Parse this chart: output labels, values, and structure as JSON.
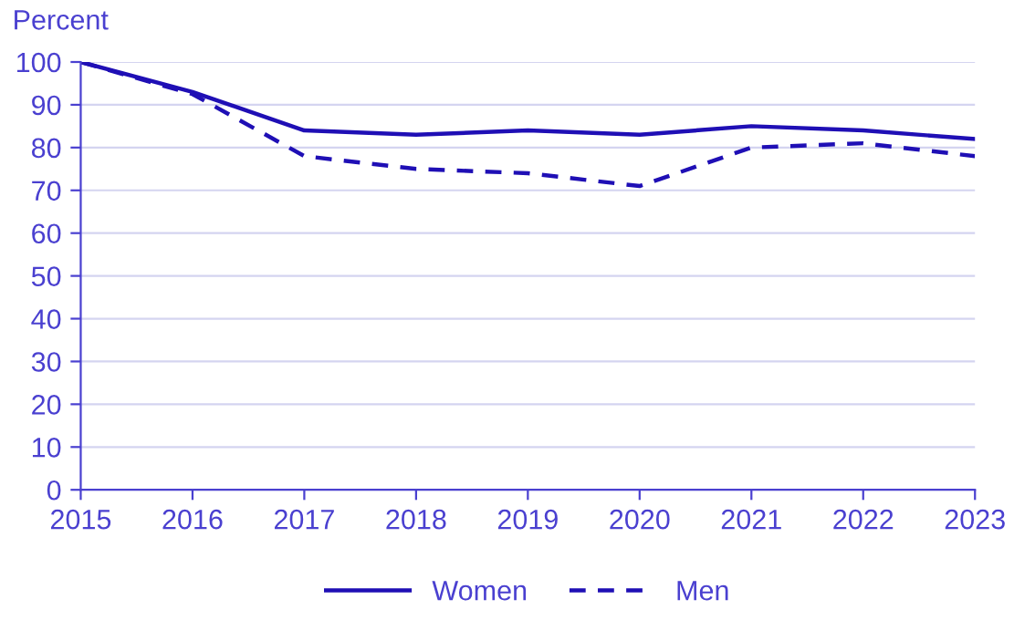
{
  "chart_data": {
    "type": "line",
    "ylabel": "Percent",
    "x": [
      2015,
      2016,
      2017,
      2018,
      2019,
      2020,
      2021,
      2022,
      2023
    ],
    "xlim": [
      2015,
      2023
    ],
    "xticks": [
      2015,
      2016,
      2017,
      2018,
      2019,
      2020,
      2021,
      2022,
      2023
    ],
    "ylim": [
      0,
      100
    ],
    "yticks": [
      0,
      10,
      20,
      30,
      40,
      50,
      60,
      70,
      80,
      90,
      100
    ],
    "grid": "y",
    "legend": "bottom",
    "marker": "none",
    "series": [
      {
        "name": "Women",
        "color": "#1f0fb5",
        "line_style": "solid",
        "values": [
          100,
          93,
          84,
          83,
          84,
          83,
          85,
          84,
          82
        ]
      },
      {
        "name": "Men",
        "color": "#1f0fb5",
        "line_style": "dashed",
        "values": [
          100,
          92.5,
          78,
          75,
          74,
          71,
          80,
          81,
          78
        ]
      }
    ]
  }
}
